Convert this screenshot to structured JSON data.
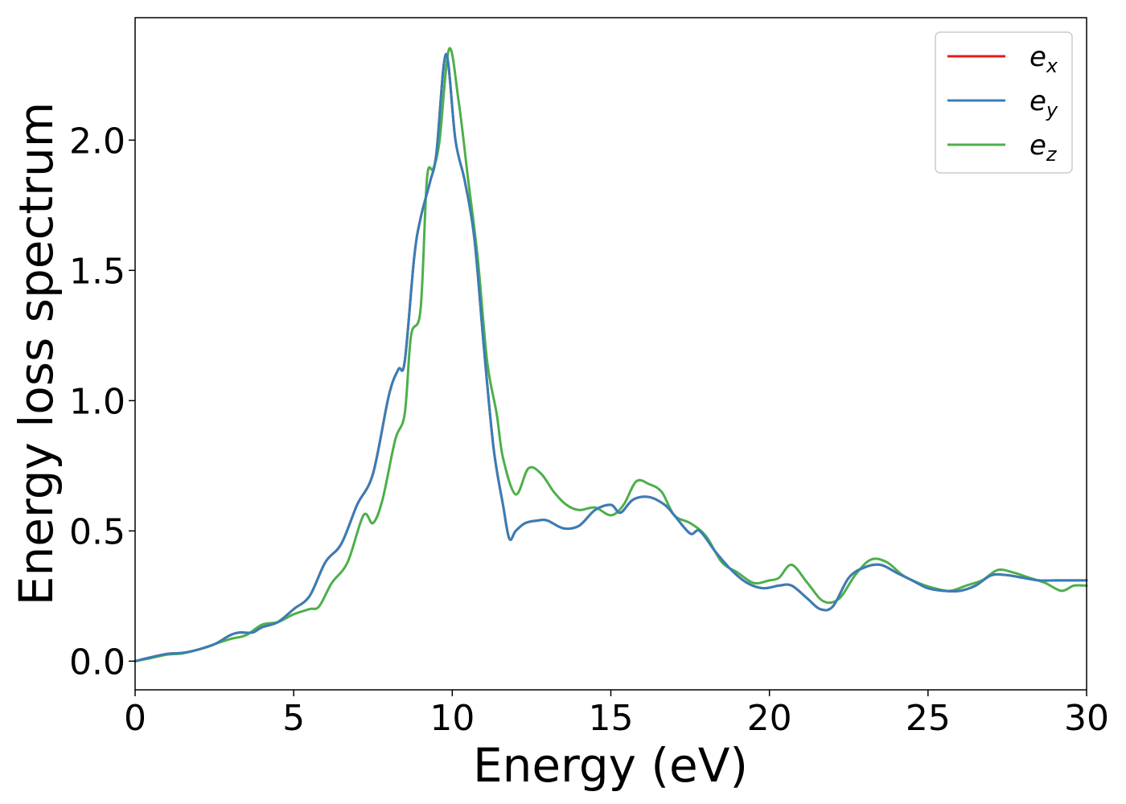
{
  "chart_data": {
    "type": "line",
    "title": "",
    "xlabel": "Energy (eV)",
    "ylabel": "Energy loss spectrum",
    "xlim": [
      0,
      30
    ],
    "ylim": [
      -0.11,
      2.47
    ],
    "x_ticks": [
      0,
      5,
      10,
      15,
      20,
      25,
      30
    ],
    "x_tick_labels": [
      "0",
      "5",
      "10",
      "15",
      "20",
      "25",
      "30"
    ],
    "y_ticks": [
      0.0,
      0.5,
      1.0,
      1.5,
      2.0
    ],
    "y_tick_labels": [
      "0.0",
      "0.5",
      "1.0",
      "1.5",
      "2.0"
    ],
    "grid": false,
    "legend_position": "top-right",
    "series": [
      {
        "name": "e_x",
        "legend_base": "e",
        "legend_sub": "x",
        "color": "#e41a1c",
        "points": [
          [
            0,
            0
          ],
          [
            0.5,
            0.015
          ],
          [
            1,
            0.028
          ],
          [
            1.5,
            0.032
          ],
          [
            2,
            0.045
          ],
          [
            2.5,
            0.065
          ],
          [
            3,
            0.1
          ],
          [
            3.3,
            0.11
          ],
          [
            3.7,
            0.11
          ],
          [
            4,
            0.13
          ],
          [
            4.5,
            0.15
          ],
          [
            5,
            0.2
          ],
          [
            5.5,
            0.25
          ],
          [
            6,
            0.38
          ],
          [
            6.5,
            0.45
          ],
          [
            7,
            0.6
          ],
          [
            7.5,
            0.72
          ],
          [
            8,
            1.02
          ],
          [
            8.3,
            1.12
          ],
          [
            8.5,
            1.15
          ],
          [
            8.8,
            1.55
          ],
          [
            9,
            1.7
          ],
          [
            9.3,
            1.84
          ],
          [
            9.5,
            1.95
          ],
          [
            9.8,
            2.33
          ],
          [
            10.1,
            2.0
          ],
          [
            10.4,
            1.84
          ],
          [
            10.7,
            1.62
          ],
          [
            11,
            1.2
          ],
          [
            11.3,
            0.82
          ],
          [
            11.6,
            0.6
          ],
          [
            11.8,
            0.47
          ],
          [
            12,
            0.5
          ],
          [
            12.3,
            0.53
          ],
          [
            12.7,
            0.54
          ],
          [
            13,
            0.54
          ],
          [
            13.5,
            0.51
          ],
          [
            14,
            0.52
          ],
          [
            14.5,
            0.58
          ],
          [
            15,
            0.6
          ],
          [
            15.3,
            0.57
          ],
          [
            15.7,
            0.62
          ],
          [
            16.2,
            0.63
          ],
          [
            16.7,
            0.6
          ],
          [
            17,
            0.56
          ],
          [
            17.5,
            0.49
          ],
          [
            17.8,
            0.5
          ],
          [
            18.3,
            0.42
          ],
          [
            18.8,
            0.35
          ],
          [
            19.3,
            0.3
          ],
          [
            19.8,
            0.28
          ],
          [
            20.3,
            0.29
          ],
          [
            20.7,
            0.29
          ],
          [
            21.2,
            0.24
          ],
          [
            21.6,
            0.2
          ],
          [
            22,
            0.21
          ],
          [
            22.5,
            0.32
          ],
          [
            23,
            0.36
          ],
          [
            23.5,
            0.37
          ],
          [
            24,
            0.34
          ],
          [
            24.5,
            0.31
          ],
          [
            25,
            0.28
          ],
          [
            25.5,
            0.27
          ],
          [
            26,
            0.27
          ],
          [
            26.5,
            0.29
          ],
          [
            27,
            0.33
          ],
          [
            27.5,
            0.33
          ],
          [
            28,
            0.32
          ],
          [
            28.5,
            0.31
          ],
          [
            29,
            0.31
          ],
          [
            29.5,
            0.31
          ],
          [
            30,
            0.31
          ]
        ]
      },
      {
        "name": "e_y",
        "legend_base": "e",
        "legend_sub": "y",
        "color": "#377eb8",
        "points": [
          [
            0,
            0
          ],
          [
            0.5,
            0.015
          ],
          [
            1,
            0.028
          ],
          [
            1.5,
            0.032
          ],
          [
            2,
            0.045
          ],
          [
            2.5,
            0.065
          ],
          [
            3,
            0.1
          ],
          [
            3.3,
            0.11
          ],
          [
            3.7,
            0.11
          ],
          [
            4,
            0.13
          ],
          [
            4.5,
            0.15
          ],
          [
            5,
            0.2
          ],
          [
            5.5,
            0.25
          ],
          [
            6,
            0.38
          ],
          [
            6.5,
            0.45
          ],
          [
            7,
            0.6
          ],
          [
            7.5,
            0.72
          ],
          [
            8,
            1.02
          ],
          [
            8.3,
            1.12
          ],
          [
            8.5,
            1.15
          ],
          [
            8.8,
            1.55
          ],
          [
            9,
            1.7
          ],
          [
            9.3,
            1.84
          ],
          [
            9.5,
            1.95
          ],
          [
            9.8,
            2.33
          ],
          [
            10.1,
            2.0
          ],
          [
            10.4,
            1.84
          ],
          [
            10.7,
            1.62
          ],
          [
            11,
            1.2
          ],
          [
            11.3,
            0.82
          ],
          [
            11.6,
            0.6
          ],
          [
            11.8,
            0.47
          ],
          [
            12,
            0.5
          ],
          [
            12.3,
            0.53
          ],
          [
            12.7,
            0.54
          ],
          [
            13,
            0.54
          ],
          [
            13.5,
            0.51
          ],
          [
            14,
            0.52
          ],
          [
            14.5,
            0.58
          ],
          [
            15,
            0.6
          ],
          [
            15.3,
            0.57
          ],
          [
            15.7,
            0.62
          ],
          [
            16.2,
            0.63
          ],
          [
            16.7,
            0.6
          ],
          [
            17,
            0.56
          ],
          [
            17.5,
            0.49
          ],
          [
            17.8,
            0.5
          ],
          [
            18.3,
            0.42
          ],
          [
            18.8,
            0.35
          ],
          [
            19.3,
            0.3
          ],
          [
            19.8,
            0.28
          ],
          [
            20.3,
            0.29
          ],
          [
            20.7,
            0.29
          ],
          [
            21.2,
            0.24
          ],
          [
            21.6,
            0.2
          ],
          [
            22,
            0.21
          ],
          [
            22.5,
            0.32
          ],
          [
            23,
            0.36
          ],
          [
            23.5,
            0.37
          ],
          [
            24,
            0.34
          ],
          [
            24.5,
            0.31
          ],
          [
            25,
            0.28
          ],
          [
            25.5,
            0.27
          ],
          [
            26,
            0.27
          ],
          [
            26.5,
            0.29
          ],
          [
            27,
            0.33
          ],
          [
            27.5,
            0.33
          ],
          [
            28,
            0.32
          ],
          [
            28.5,
            0.31
          ],
          [
            29,
            0.31
          ],
          [
            29.5,
            0.31
          ],
          [
            30,
            0.31
          ]
        ]
      },
      {
        "name": "e_z",
        "legend_base": "e",
        "legend_sub": "z",
        "color": "#4daf4a",
        "points": [
          [
            0,
            0
          ],
          [
            0.5,
            0.012
          ],
          [
            1,
            0.025
          ],
          [
            1.5,
            0.03
          ],
          [
            2,
            0.045
          ],
          [
            2.5,
            0.065
          ],
          [
            3,
            0.085
          ],
          [
            3.5,
            0.1
          ],
          [
            4,
            0.14
          ],
          [
            4.5,
            0.15
          ],
          [
            5,
            0.18
          ],
          [
            5.5,
            0.2
          ],
          [
            5.8,
            0.21
          ],
          [
            6.2,
            0.3
          ],
          [
            6.7,
            0.38
          ],
          [
            7.2,
            0.56
          ],
          [
            7.5,
            0.53
          ],
          [
            7.8,
            0.62
          ],
          [
            8.2,
            0.85
          ],
          [
            8.5,
            0.95
          ],
          [
            8.7,
            1.25
          ],
          [
            9,
            1.35
          ],
          [
            9.2,
            1.85
          ],
          [
            9.4,
            1.89
          ],
          [
            9.6,
            2.0
          ],
          [
            9.9,
            2.35
          ],
          [
            10.2,
            2.15
          ],
          [
            10.5,
            1.85
          ],
          [
            10.8,
            1.55
          ],
          [
            11.1,
            1.15
          ],
          [
            11.4,
            0.95
          ],
          [
            11.6,
            0.78
          ],
          [
            12,
            0.64
          ],
          [
            12.4,
            0.74
          ],
          [
            12.8,
            0.72
          ],
          [
            13.2,
            0.65
          ],
          [
            13.6,
            0.6
          ],
          [
            14,
            0.58
          ],
          [
            14.5,
            0.59
          ],
          [
            15,
            0.56
          ],
          [
            15.4,
            0.6
          ],
          [
            15.8,
            0.69
          ],
          [
            16.2,
            0.68
          ],
          [
            16.6,
            0.65
          ],
          [
            17,
            0.56
          ],
          [
            17.5,
            0.53
          ],
          [
            18,
            0.48
          ],
          [
            18.5,
            0.38
          ],
          [
            19,
            0.34
          ],
          [
            19.5,
            0.3
          ],
          [
            20,
            0.31
          ],
          [
            20.3,
            0.32
          ],
          [
            20.7,
            0.37
          ],
          [
            21.2,
            0.3
          ],
          [
            21.7,
            0.23
          ],
          [
            22.2,
            0.24
          ],
          [
            22.7,
            0.33
          ],
          [
            23.2,
            0.39
          ],
          [
            23.7,
            0.38
          ],
          [
            24.2,
            0.33
          ],
          [
            24.7,
            0.3
          ],
          [
            25.2,
            0.28
          ],
          [
            25.7,
            0.27
          ],
          [
            26.2,
            0.29
          ],
          [
            26.7,
            0.31
          ],
          [
            27.2,
            0.35
          ],
          [
            27.7,
            0.34
          ],
          [
            28.2,
            0.32
          ],
          [
            28.7,
            0.3
          ],
          [
            29.2,
            0.27
          ],
          [
            29.6,
            0.29
          ],
          [
            30,
            0.29
          ]
        ]
      }
    ]
  }
}
